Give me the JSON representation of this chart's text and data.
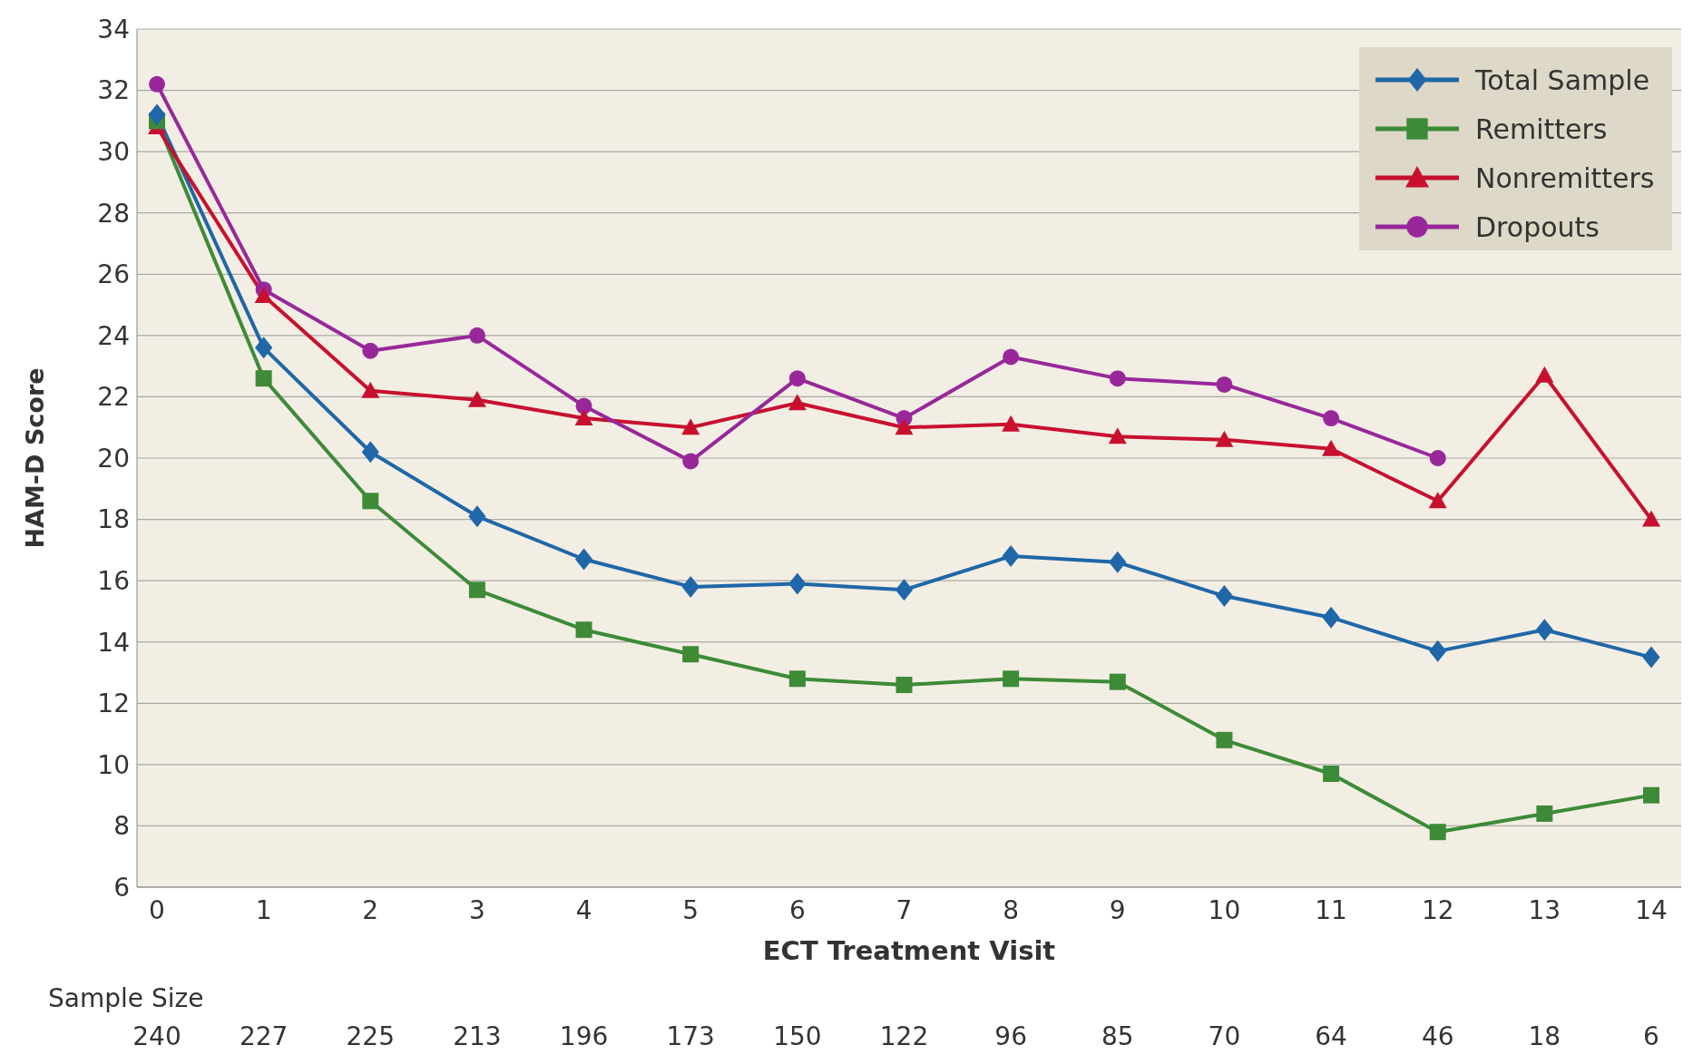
{
  "chart_data": {
    "type": "line",
    "xlabel": "ECT Treatment Visit",
    "ylabel": "HAM-D Score",
    "categories": [
      "0",
      "1",
      "2",
      "3",
      "4",
      "5",
      "6",
      "7",
      "8",
      "9",
      "10",
      "11",
      "12",
      "13",
      "14"
    ],
    "ylim": [
      6,
      34
    ],
    "yticks": [
      6,
      8,
      10,
      12,
      14,
      16,
      18,
      20,
      22,
      24,
      26,
      28,
      30,
      32,
      34
    ],
    "grid": "y",
    "legend": "top right",
    "series": [
      {
        "name": "Total Sample",
        "color": "#1f67a8",
        "marker": "diamond",
        "values": [
          31.2,
          23.6,
          20.2,
          18.1,
          16.7,
          15.8,
          15.9,
          15.7,
          16.8,
          16.6,
          15.5,
          14.8,
          13.7,
          14.4,
          13.5
        ]
      },
      {
        "name": "Remitters",
        "color": "#3d8b37",
        "marker": "square",
        "values": [
          31.0,
          22.6,
          18.6,
          15.7,
          14.4,
          13.6,
          12.8,
          12.6,
          12.8,
          12.7,
          10.8,
          9.7,
          7.8,
          8.4,
          9.0
        ]
      },
      {
        "name": "Nonremitters",
        "color": "#c8102e",
        "marker": "triangle",
        "values": [
          30.8,
          25.3,
          22.2,
          21.9,
          21.3,
          21.0,
          21.8,
          21.0,
          21.1,
          20.7,
          20.6,
          20.3,
          18.6,
          22.7,
          18.0
        ]
      },
      {
        "name": "Dropouts",
        "color": "#98289a",
        "marker": "circle",
        "values": [
          32.2,
          25.5,
          23.5,
          24.0,
          21.7,
          19.9,
          22.6,
          21.3,
          23.3,
          22.6,
          22.4,
          21.3,
          20.0,
          null,
          null
        ]
      }
    ],
    "annotations": [
      "Sample Size",
      "240",
      "227",
      "225",
      "213",
      "196",
      "173",
      "150",
      "122",
      "96",
      "85",
      "70",
      "64",
      "46",
      "18",
      "6"
    ]
  }
}
